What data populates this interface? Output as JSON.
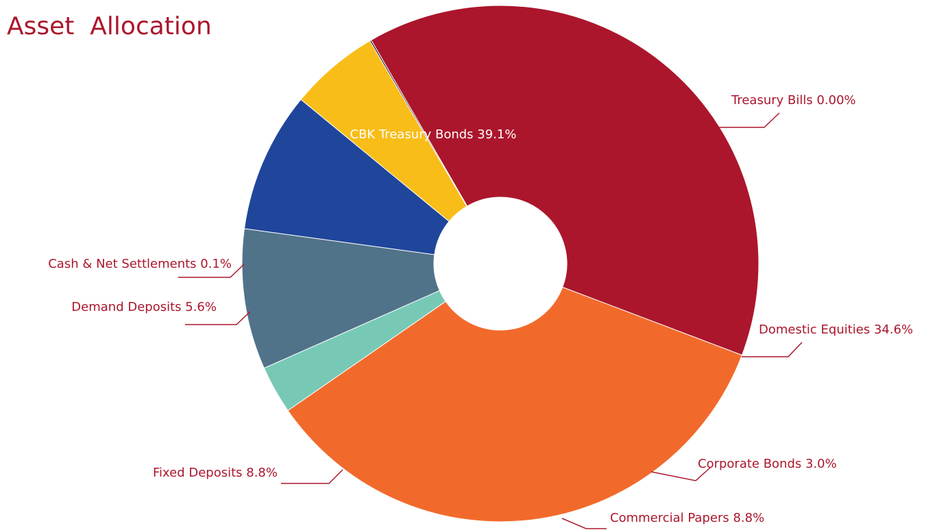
{
  "chart_data": {
    "type": "pie",
    "title": "Asset  Allocation",
    "donut": true,
    "legend": "none",
    "slices": [
      {
        "label": "CBK Treasury Bonds 39.1%",
        "value": 39.1,
        "color": "#ab162c"
      },
      {
        "label": "Treasury Bills 0.00%",
        "value": 0.0,
        "color": "#ab162c"
      },
      {
        "label": "Domestic Equities 34.6%",
        "value": 34.6,
        "color": "#f26a2b"
      },
      {
        "label": "Corporate Bonds 3.0%",
        "value": 3.0,
        "color": "#77c9b6"
      },
      {
        "label": "Commercial Papers  8.8%",
        "value": 8.8,
        "color": "#51738a"
      },
      {
        "label": "Fixed Deposits 8.8%",
        "value": 8.8,
        "color": "#1f469b"
      },
      {
        "label": "Demand Deposits 5.6%",
        "value": 5.6,
        "color": "#f8bd18"
      },
      {
        "label": "Cash & Net Settlements 0.1%",
        "value": 0.1,
        "color": "#3a1e2a"
      }
    ]
  }
}
